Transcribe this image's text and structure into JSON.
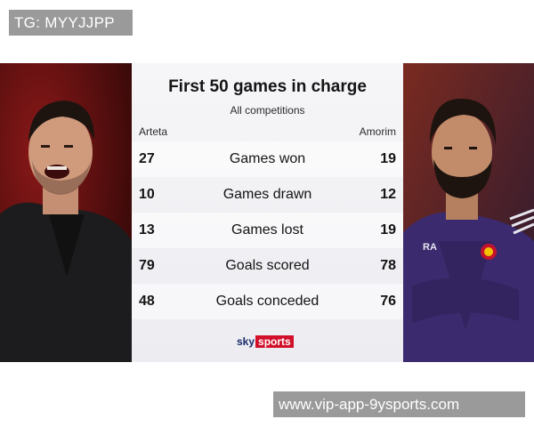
{
  "badge": {
    "text": "TG: MYYJJPP"
  },
  "graphic": {
    "title": "First 50 games in charge",
    "subtitle": "All competitions",
    "left_name": "Arteta",
    "right_name": "Amorim",
    "rows": [
      {
        "left": "27",
        "label": "Games won",
        "right": "19"
      },
      {
        "left": "10",
        "label": "Games drawn",
        "right": "12"
      },
      {
        "left": "13",
        "label": "Games lost",
        "right": "19"
      },
      {
        "left": "79",
        "label": "Goals scored",
        "right": "78"
      },
      {
        "left": "48",
        "label": "Goals conceded",
        "right": "76"
      }
    ],
    "logo": {
      "sky": "sky",
      "sports": "sports"
    },
    "jacket_initials": "RA"
  },
  "colors": {
    "panel": "#efeff3",
    "badge_bg": "#9a9a9a",
    "sky_blue": "#1a2a6c",
    "sports_red": "#d2102a",
    "left_background": "#6a1010",
    "right_jacket": "#3b2a6e"
  },
  "watermark": {
    "text": "www.vip-app-9ysports.com"
  }
}
